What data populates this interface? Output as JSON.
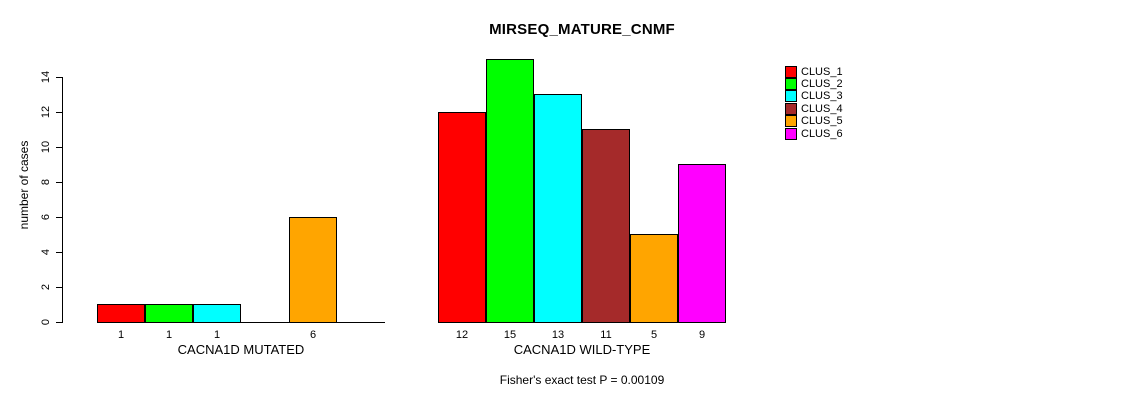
{
  "chart_data": {
    "type": "bar",
    "title": "MIRSEQ_MATURE_CNMF",
    "ylabel": "number of cases",
    "xlabel": "",
    "ylim": [
      0,
      15
    ],
    "yticks": [
      0,
      2,
      4,
      6,
      8,
      10,
      12,
      14
    ],
    "grid": false,
    "legend_position": "top-right",
    "series": [
      {
        "name": "CLUS_1",
        "color": "#ff0000"
      },
      {
        "name": "CLUS_2",
        "color": "#00ff00"
      },
      {
        "name": "CLUS_3",
        "color": "#00ffff"
      },
      {
        "name": "CLUS_4",
        "color": "#a52a2a"
      },
      {
        "name": "CLUS_5",
        "color": "#ffa500"
      },
      {
        "name": "CLUS_6",
        "color": "#ff00ff"
      }
    ],
    "groups": [
      {
        "label": "CACNA1D MUTATED",
        "values": [
          1,
          1,
          1,
          0,
          6,
          0
        ],
        "bar_labels": [
          "1",
          "1",
          "1",
          "",
          "6",
          ""
        ]
      },
      {
        "label": "CACNA1D WILD-TYPE",
        "values": [
          12,
          15,
          13,
          11,
          5,
          9
        ],
        "bar_labels": [
          "12",
          "15",
          "13",
          "11",
          "5",
          "9"
        ]
      }
    ],
    "footnote": "Fisher's exact test P = 0.00109"
  }
}
